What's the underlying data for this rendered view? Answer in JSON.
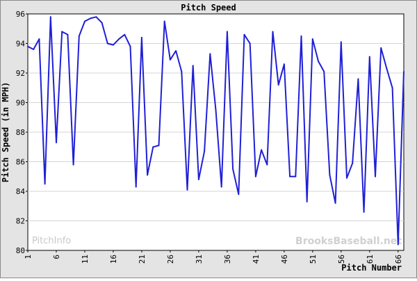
{
  "chart_data": {
    "type": "line",
    "title": "Pitch Speed",
    "xlabel": "Pitch Number",
    "ylabel": "Pitch Speed (in MPH)",
    "xlim": [
      1,
      67
    ],
    "ylim": [
      80,
      96
    ],
    "x_ticks": [
      1,
      6,
      11,
      16,
      21,
      26,
      31,
      36,
      41,
      46,
      51,
      56,
      61,
      66
    ],
    "y_ticks": [
      80,
      82,
      84,
      86,
      88,
      90,
      92,
      94,
      96
    ],
    "grid": true,
    "line_color": "#1f1fd6",
    "series": [
      {
        "x": [
          1,
          2,
          3,
          4,
          5,
          6,
          7,
          8,
          9,
          10,
          11,
          12,
          13,
          14,
          15,
          16,
          17,
          18,
          19,
          20,
          21,
          22,
          23,
          24,
          25,
          26,
          27,
          28,
          29,
          30,
          31,
          32,
          33,
          34,
          35,
          36,
          37,
          38,
          39,
          40,
          41,
          42,
          43,
          44,
          45,
          46,
          47,
          48,
          49,
          50,
          51,
          52,
          53,
          54,
          55,
          56,
          57,
          58,
          59,
          60,
          61,
          62,
          63,
          64,
          65,
          66,
          67
        ],
        "values": [
          93.8,
          93.6,
          94.3,
          84.5,
          95.8,
          87.3,
          94.8,
          94.6,
          85.8,
          94.5,
          95.5,
          95.7,
          95.8,
          95.4,
          94.0,
          93.9,
          94.3,
          94.6,
          93.8,
          84.3,
          94.4,
          85.1,
          87.0,
          87.1,
          95.5,
          92.9,
          93.5,
          92.1,
          84.1,
          92.5,
          84.8,
          86.7,
          93.3,
          89.5,
          84.3,
          94.8,
          85.5,
          83.8,
          94.6,
          94.0,
          85.0,
          86.8,
          85.8,
          94.8,
          91.2,
          92.6,
          85.0,
          85.0,
          94.5,
          83.3,
          94.3,
          92.8,
          92.1,
          85.1,
          83.2,
          94.1,
          84.9,
          85.9,
          91.6,
          82.6,
          93.1,
          85.0,
          93.7,
          92.3,
          91.0,
          80.4,
          92.1
        ]
      }
    ]
  },
  "watermarks": {
    "left": "PitchInfo",
    "right": "BrooksBaseball.net"
  },
  "colors": {
    "frame": "#e4e4e4",
    "plot_bg": "#ffffff",
    "grid": "#d4d4d4",
    "line": "#1f1fd6"
  }
}
